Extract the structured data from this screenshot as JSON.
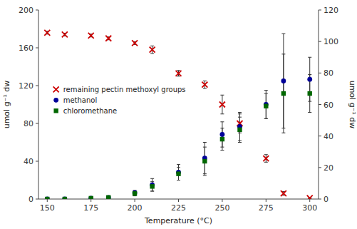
{
  "chart_data": {
    "type": "scatter",
    "x_label": "Temperature (°C)",
    "y_label": "umol g⁻¹ dw",
    "y2_label": "umol g⁻¹ dw",
    "xlim": [
      145,
      305
    ],
    "xticks": [
      150,
      175,
      200,
      225,
      250,
      275,
      300
    ],
    "ylim": [
      0,
      200
    ],
    "yticks": [
      0,
      40,
      80,
      120,
      160,
      200
    ],
    "y2lim": [
      0,
      120
    ],
    "y2ticks": [
      0,
      20,
      40,
      60,
      80,
      100,
      120
    ],
    "grid": false,
    "legend": "upper left",
    "series": [
      {
        "name": "remaining pectin methoxyl groups",
        "color": "#cc0000",
        "marker": "x",
        "axis": "y",
        "x": [
          150,
          160,
          175,
          185,
          200,
          210,
          225,
          240,
          250,
          260,
          275,
          285,
          300
        ],
        "values": [
          176,
          174,
          173,
          170,
          165,
          158,
          133,
          121,
          100,
          80,
          43,
          6,
          1
        ],
        "errors": [
          1.5,
          1.5,
          1.5,
          1.5,
          1.5,
          4,
          3,
          4,
          10,
          10,
          4,
          2,
          0.5
        ]
      },
      {
        "name": "methanol",
        "color": "#000099",
        "marker": "circle",
        "axis": "y2",
        "x": [
          150,
          160,
          175,
          185,
          200,
          210,
          225,
          240,
          250,
          260,
          275,
          285,
          300
        ],
        "values": [
          0,
          0,
          0.5,
          1,
          4,
          9,
          17,
          26,
          41,
          46,
          60,
          75,
          76
        ],
        "errors": [
          0,
          0,
          0.5,
          1,
          1.5,
          4,
          5,
          10,
          8,
          9,
          9,
          30,
          14
        ]
      },
      {
        "name": "chloromethane",
        "color": "#006600",
        "marker": "square",
        "axis": "y2",
        "x": [
          150,
          160,
          175,
          185,
          200,
          210,
          225,
          240,
          250,
          260,
          275,
          285,
          300
        ],
        "values": [
          0,
          0,
          0.5,
          1,
          3.5,
          8,
          16,
          24,
          38,
          44,
          59,
          67,
          67
        ],
        "errors": [
          0,
          0,
          0.5,
          0.8,
          1.5,
          3,
          4,
          9,
          7,
          8,
          8,
          25,
          12
        ]
      }
    ]
  }
}
